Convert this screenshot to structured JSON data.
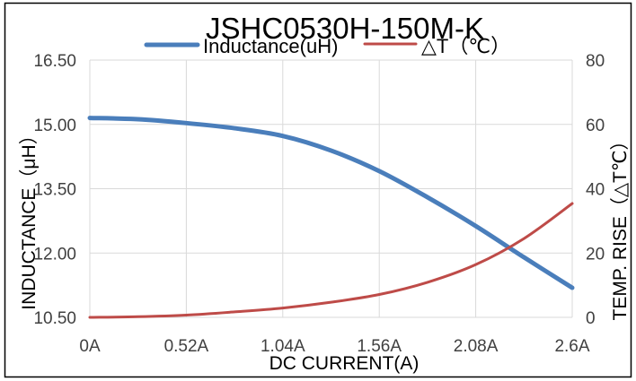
{
  "chart_data": {
    "type": "line",
    "title": "JSHC0530H-150M-K",
    "xlabel": "DC CURRENT(A)",
    "ylabel": "INDUCTANCE（μH）",
    "y2label": "TEMP. RISE（△T℃）",
    "xticks": [
      "0A",
      "0.52A",
      "1.04A",
      "1.56A",
      "2.08A",
      "2.6A"
    ],
    "yticks": [
      "10.50",
      "12.00",
      "13.50",
      "15.00",
      "16.50"
    ],
    "y2ticks": [
      "0",
      "20",
      "40",
      "60",
      "80"
    ],
    "xlim": [
      0,
      2.6
    ],
    "ylim": [
      10.5,
      16.5
    ],
    "y2lim": [
      0,
      80
    ],
    "grid": true,
    "legend_position": "top",
    "x": [
      0,
      0.26,
      0.52,
      0.78,
      1.04,
      1.3,
      1.56,
      1.82,
      2.08,
      2.34,
      2.6
    ],
    "series": [
      {
        "name": "Inductance(uH)",
        "axis": "left",
        "color": "#4A7EBB",
        "values": [
          15.15,
          15.12,
          15.03,
          14.91,
          14.73,
          14.39,
          13.91,
          13.3,
          12.63,
          11.9,
          11.19
        ]
      },
      {
        "name": "△T（℃）",
        "axis": "right",
        "color": "#BE4B48",
        "values": [
          0,
          0.2,
          0.7,
          1.7,
          2.9,
          4.7,
          7.1,
          10.9,
          16.4,
          24.5,
          35.4
        ]
      }
    ]
  }
}
